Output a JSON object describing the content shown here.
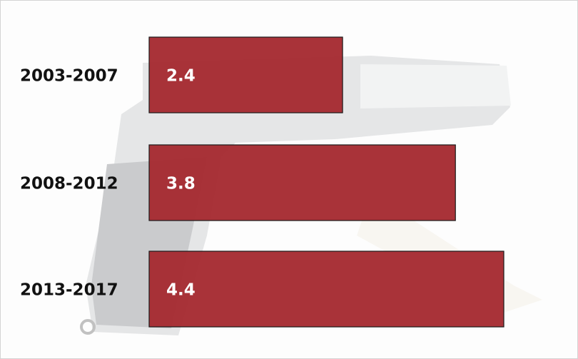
{
  "chart_data": {
    "type": "bar",
    "orientation": "horizontal",
    "categories": [
      "2003-2007",
      "2008-2012",
      "2013-2017"
    ],
    "values": [
      2.4,
      3.8,
      4.4
    ],
    "color": "#a4282e"
  }
}
